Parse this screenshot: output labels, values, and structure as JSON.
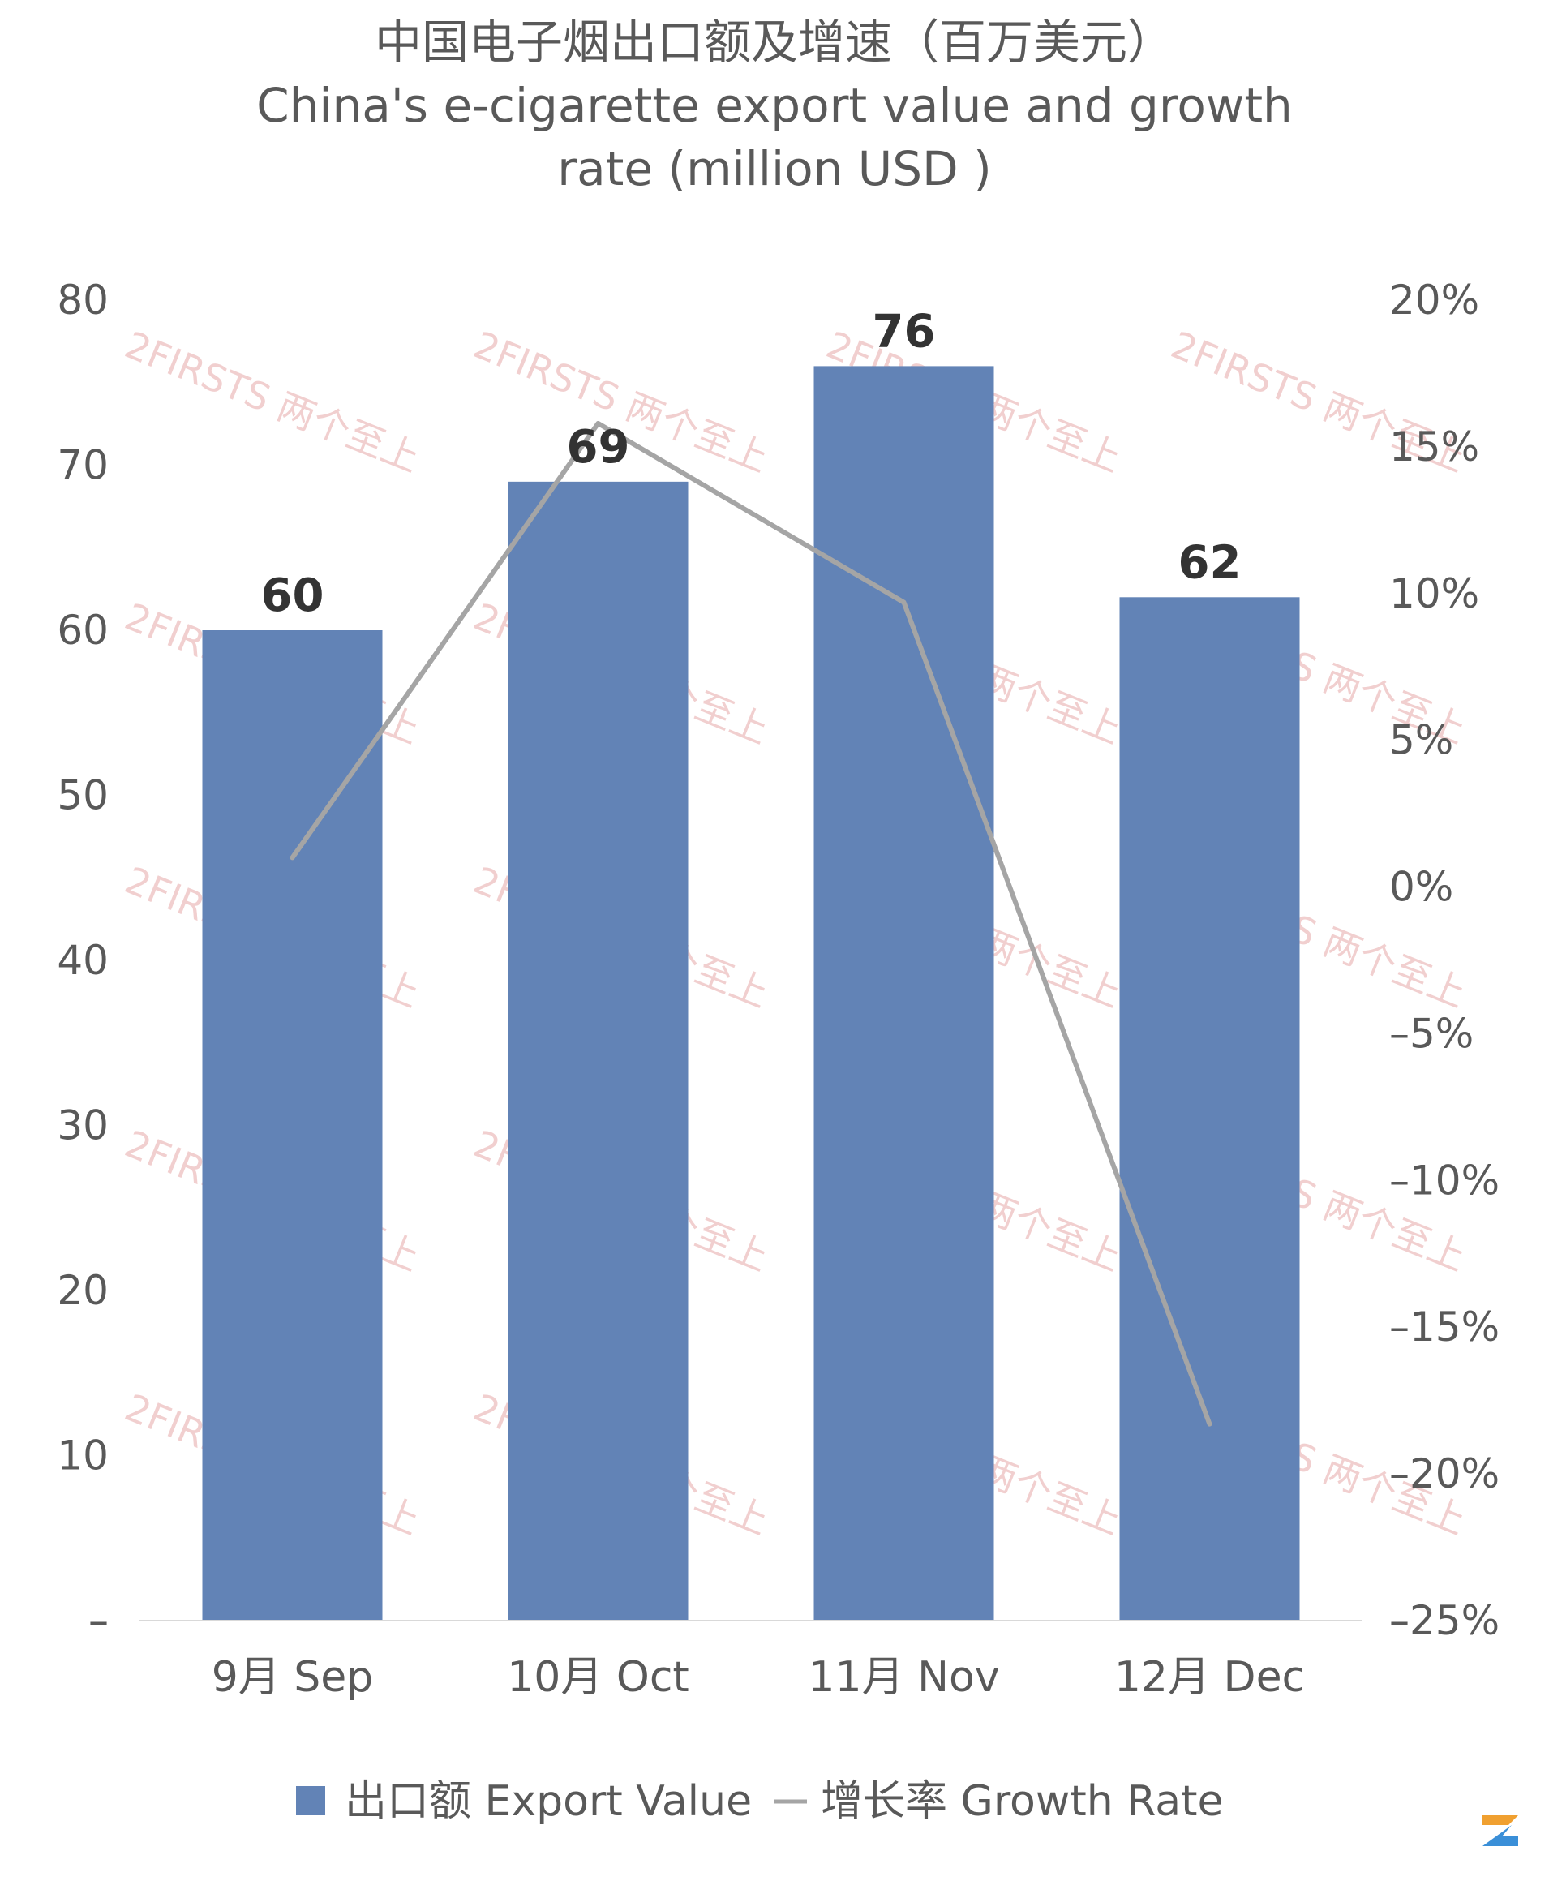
{
  "chart_data": {
    "type": "bar",
    "title_lines": [
      "中国电子烟出口额及增速（百万美元）",
      "China's e-cigarette export value and growth",
      "rate (million USD )"
    ],
    "categories": [
      "9月 Sep",
      "10月 Oct",
      "11月 Nov",
      "12月 Dec"
    ],
    "series": [
      {
        "name": "出口额 Export Value",
        "kind": "bar",
        "axis": "left",
        "color": "#6283B6",
        "values": [
          60,
          69,
          76,
          62
        ],
        "labels": [
          "60",
          "69",
          "76",
          "62"
        ]
      },
      {
        "name": "增长率 Growth Rate",
        "kind": "line",
        "axis": "right",
        "color": "#A5A5A5",
        "values": [
          1.0,
          15.8,
          9.7,
          -18.3
        ]
      }
    ],
    "left_axis": {
      "ylim": [
        0,
        80
      ],
      "tick_labels": [
        "–",
        "10",
        "20",
        "30",
        "40",
        "50",
        "60",
        "70",
        "80"
      ]
    },
    "right_axis": {
      "ylim": [
        -25,
        20
      ],
      "tick_labels": [
        "–25%",
        "–20%",
        "–15%",
        "–10%",
        "–5%",
        "0%",
        "5%",
        "10%",
        "15%",
        "20%"
      ]
    },
    "grid": false,
    "legend_position": "bottom",
    "watermark": "2FIRSTS 两个至上"
  }
}
